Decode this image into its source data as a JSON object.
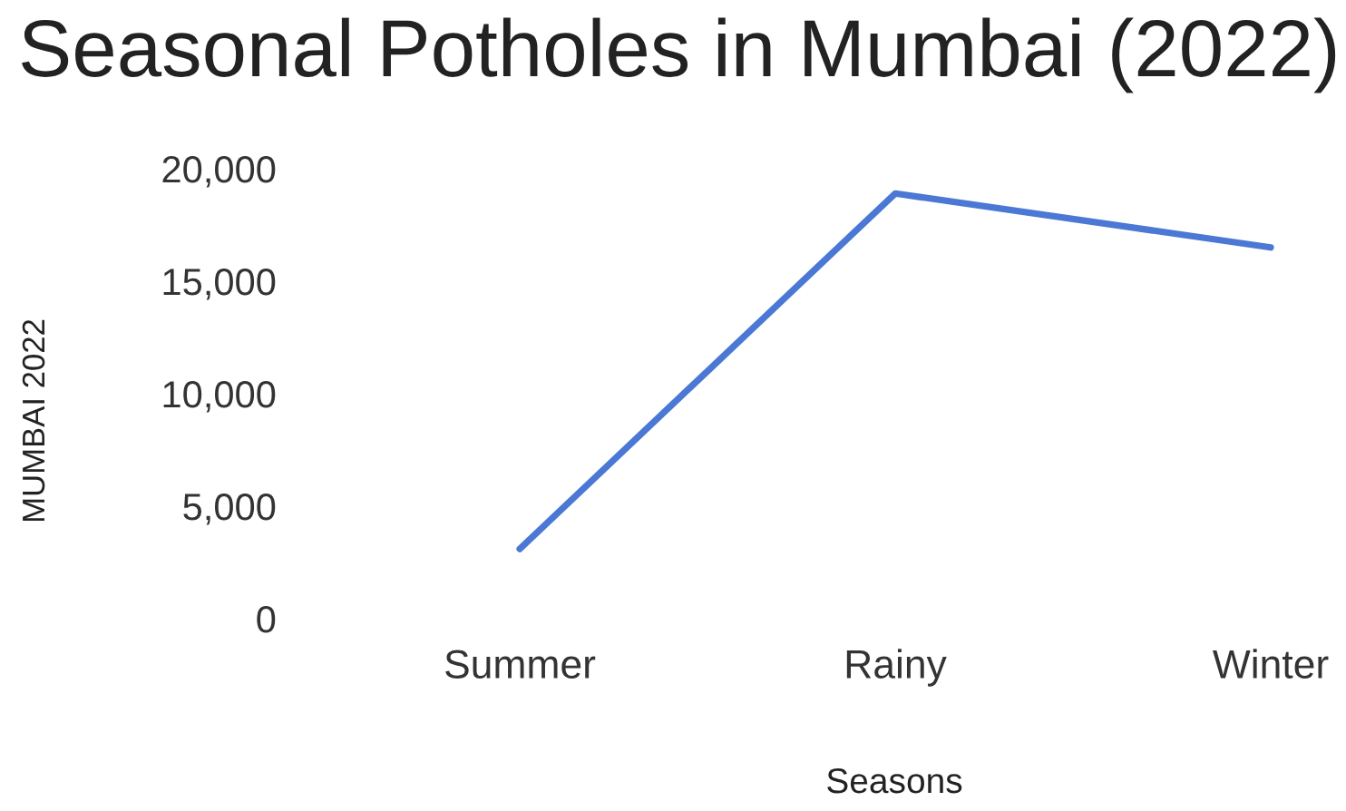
{
  "chart_data": {
    "type": "line",
    "title": "Seasonal Potholes in Mumbai (2022)",
    "xlabel": "Seasons",
    "ylabel": "MUMBAI 2022",
    "categories": [
      "Summer",
      "Rainy",
      "Winter"
    ],
    "series": [
      {
        "color": "#4a78d4",
        "values": [
          3100,
          18900,
          16500
        ]
      }
    ],
    "ylim": [
      0,
      20000
    ],
    "yticks": [
      0,
      {
        "value": 5000,
        "label": "5,000"
      },
      {
        "value": 10000,
        "label": "10,000"
      },
      {
        "value": 15000,
        "label": "15,000"
      },
      {
        "value": 20000,
        "label": "20,000"
      }
    ],
    "grid": false,
    "marker": "none",
    "line_style": "solid"
  }
}
